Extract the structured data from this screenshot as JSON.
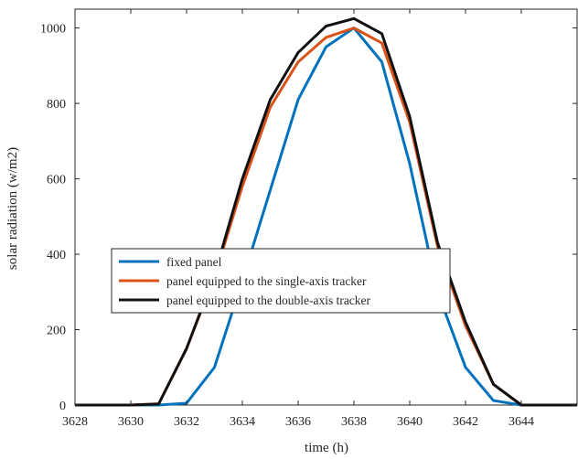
{
  "chart_data": {
    "type": "line",
    "title": "",
    "xlabel": "time (h)",
    "ylabel": "solar radiation (w/m2)",
    "xlim": [
      3628,
      3646
    ],
    "ylim": [
      0,
      1050
    ],
    "xticks": [
      3628,
      3630,
      3632,
      3634,
      3636,
      3638,
      3640,
      3642,
      3644
    ],
    "yticks": [
      0,
      200,
      400,
      600,
      800,
      1000
    ],
    "grid": false,
    "legend_position": "lower-left",
    "x": [
      3628,
      3629,
      3630,
      3631,
      3632,
      3633,
      3634,
      3635,
      3636,
      3637,
      3638,
      3639,
      3640,
      3641,
      3642,
      3643,
      3644,
      3645,
      3646
    ],
    "series": [
      {
        "name": "fixed panel",
        "color": "#0072BD",
        "values": [
          0,
          0,
          0,
          0,
          5,
          100,
          330,
          570,
          810,
          950,
          1000,
          910,
          640,
          300,
          100,
          12,
          0,
          0,
          0
        ]
      },
      {
        "name": "panel equipped to the single-axis tracker",
        "color": "#D95319",
        "values": [
          0,
          0,
          0,
          3,
          150,
          340,
          580,
          790,
          910,
          975,
          1000,
          960,
          750,
          420,
          210,
          55,
          0,
          0,
          0
        ]
      },
      {
        "name": "panel equipped to the double-axis tracker",
        "color": "#111111",
        "values": [
          0,
          0,
          0,
          3,
          150,
          345,
          600,
          810,
          935,
          1005,
          1025,
          985,
          765,
          430,
          220,
          55,
          0,
          0,
          0
        ]
      }
    ]
  }
}
